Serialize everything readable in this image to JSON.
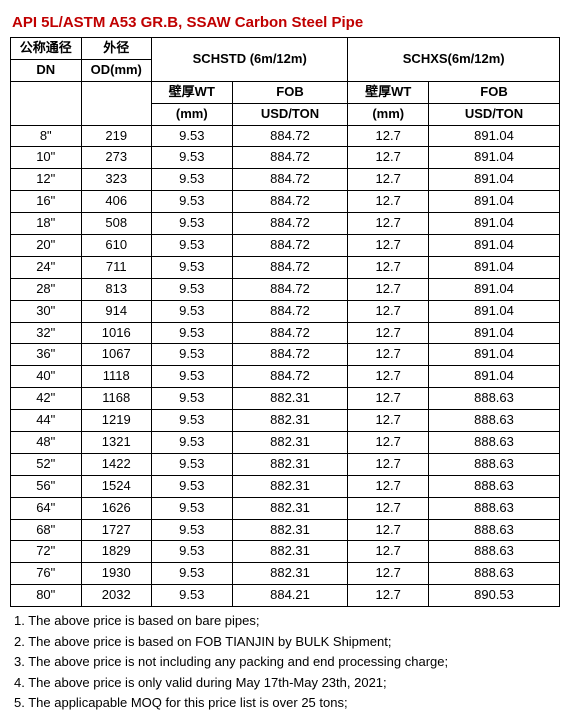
{
  "title": {
    "text": "API 5L/ASTM A53 GR.B, SSAW Carbon Steel Pipe",
    "color": "#c00000"
  },
  "headers": {
    "dn1": "公称通径",
    "dn2": "DN",
    "od1": "外径",
    "od2": "OD(mm)",
    "schstd": "SCHSTD (6m/12m)",
    "schxs": "SCHXS(6m/12m)",
    "wt1": "壁厚WT",
    "wt2": "(mm)",
    "fob1": "FOB",
    "fob2": "USD/TON"
  },
  "rows": [
    {
      "dn": "8\"",
      "od": "219",
      "std_wt": "9.53",
      "std_fob": "884.72",
      "xs_wt": "12.7",
      "xs_fob": "891.04"
    },
    {
      "dn": "10\"",
      "od": "273",
      "std_wt": "9.53",
      "std_fob": "884.72",
      "xs_wt": "12.7",
      "xs_fob": "891.04"
    },
    {
      "dn": "12\"",
      "od": "323",
      "std_wt": "9.53",
      "std_fob": "884.72",
      "xs_wt": "12.7",
      "xs_fob": "891.04"
    },
    {
      "dn": "16\"",
      "od": "406",
      "std_wt": "9.53",
      "std_fob": "884.72",
      "xs_wt": "12.7",
      "xs_fob": "891.04"
    },
    {
      "dn": "18\"",
      "od": "508",
      "std_wt": "9.53",
      "std_fob": "884.72",
      "xs_wt": "12.7",
      "xs_fob": "891.04"
    },
    {
      "dn": "20\"",
      "od": "610",
      "std_wt": "9.53",
      "std_fob": "884.72",
      "xs_wt": "12.7",
      "xs_fob": "891.04"
    },
    {
      "dn": "24\"",
      "od": "711",
      "std_wt": "9.53",
      "std_fob": "884.72",
      "xs_wt": "12.7",
      "xs_fob": "891.04"
    },
    {
      "dn": "28\"",
      "od": "813",
      "std_wt": "9.53",
      "std_fob": "884.72",
      "xs_wt": "12.7",
      "xs_fob": "891.04"
    },
    {
      "dn": "30\"",
      "od": "914",
      "std_wt": "9.53",
      "std_fob": "884.72",
      "xs_wt": "12.7",
      "xs_fob": "891.04"
    },
    {
      "dn": "32\"",
      "od": "1016",
      "std_wt": "9.53",
      "std_fob": "884.72",
      "xs_wt": "12.7",
      "xs_fob": "891.04"
    },
    {
      "dn": "36\"",
      "od": "1067",
      "std_wt": "9.53",
      "std_fob": "884.72",
      "xs_wt": "12.7",
      "xs_fob": "891.04"
    },
    {
      "dn": "40\"",
      "od": "1118",
      "std_wt": "9.53",
      "std_fob": "884.72",
      "xs_wt": "12.7",
      "xs_fob": "891.04"
    },
    {
      "dn": "42\"",
      "od": "1168",
      "std_wt": "9.53",
      "std_fob": "882.31",
      "xs_wt": "12.7",
      "xs_fob": "888.63"
    },
    {
      "dn": "44\"",
      "od": "1219",
      "std_wt": "9.53",
      "std_fob": "882.31",
      "xs_wt": "12.7",
      "xs_fob": "888.63"
    },
    {
      "dn": "48\"",
      "od": "1321",
      "std_wt": "9.53",
      "std_fob": "882.31",
      "xs_wt": "12.7",
      "xs_fob": "888.63"
    },
    {
      "dn": "52\"",
      "od": "1422",
      "std_wt": "9.53",
      "std_fob": "882.31",
      "xs_wt": "12.7",
      "xs_fob": "888.63"
    },
    {
      "dn": "56\"",
      "od": "1524",
      "std_wt": "9.53",
      "std_fob": "882.31",
      "xs_wt": "12.7",
      "xs_fob": "888.63"
    },
    {
      "dn": "64\"",
      "od": "1626",
      "std_wt": "9.53",
      "std_fob": "882.31",
      "xs_wt": "12.7",
      "xs_fob": "888.63"
    },
    {
      "dn": "68\"",
      "od": "1727",
      "std_wt": "9.53",
      "std_fob": "882.31",
      "xs_wt": "12.7",
      "xs_fob": "888.63"
    },
    {
      "dn": "72\"",
      "od": "1829",
      "std_wt": "9.53",
      "std_fob": "882.31",
      "xs_wt": "12.7",
      "xs_fob": "888.63"
    },
    {
      "dn": "76\"",
      "od": "1930",
      "std_wt": "9.53",
      "std_fob": "882.31",
      "xs_wt": "12.7",
      "xs_fob": "888.63"
    },
    {
      "dn": "80\"",
      "od": "2032",
      "std_wt": "9.53",
      "std_fob": "884.21",
      "xs_wt": "12.7",
      "xs_fob": "890.53"
    }
  ],
  "notes": [
    "1. The above price is based on bare pipes;",
    "2. The above price is based on FOB TIANJIN by BULK Shipment;",
    "3. The above price is not including any packing and end processing charge;",
    "4. The above price is only valid during May 17th-May 23th, 2021;",
    "5. The applicapable MOQ for this price list is over 25 tons;"
  ]
}
